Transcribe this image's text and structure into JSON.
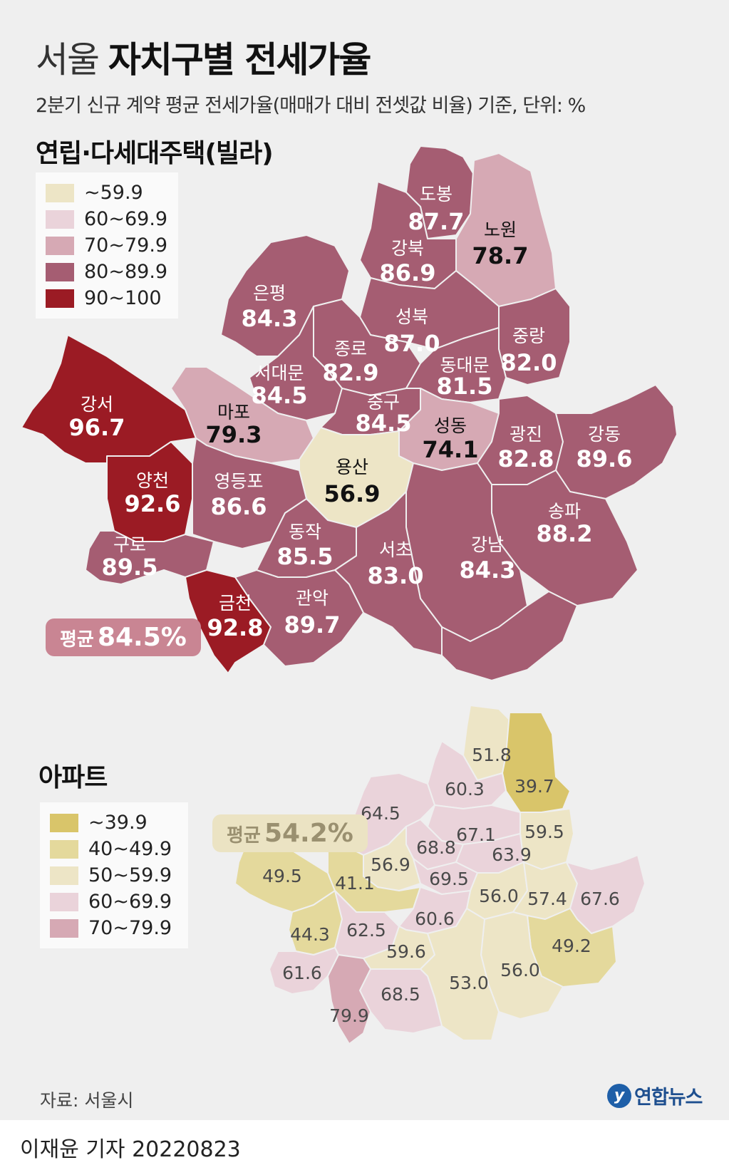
{
  "title": {
    "light": "서울",
    "bold": "자치구별 전세가율"
  },
  "subtitle": "2분기 신규 계약 평균 전세가율(매매가 대비 전셋값 비율) 기준, 단위: %",
  "villa": {
    "section_title": "연립·다세대주택(빌라)",
    "legend": [
      {
        "label": "~59.9",
        "color": "#ede5c6"
      },
      {
        "label": "60~69.9",
        "color": "#ead3da"
      },
      {
        "label": "70~79.9",
        "color": "#d6a9b4"
      },
      {
        "label": "80~89.9",
        "color": "#a55d72"
      },
      {
        "label": "90~100",
        "color": "#9b1b24"
      }
    ],
    "average": {
      "label": "평균",
      "value": "84.5%"
    },
    "districts": [
      {
        "name": "도봉",
        "value": "87.7",
        "color": "#a55d72"
      },
      {
        "name": "노원",
        "value": "78.7",
        "color": "#d6a9b4"
      },
      {
        "name": "강북",
        "value": "86.9",
        "color": "#a55d72"
      },
      {
        "name": "은평",
        "value": "84.3",
        "color": "#a55d72"
      },
      {
        "name": "성북",
        "value": "87.0",
        "color": "#a55d72"
      },
      {
        "name": "중랑",
        "value": "82.0",
        "color": "#a55d72"
      },
      {
        "name": "종로",
        "value": "82.9",
        "color": "#a55d72"
      },
      {
        "name": "서대문",
        "value": "84.5",
        "color": "#a55d72"
      },
      {
        "name": "동대문",
        "value": "81.5",
        "color": "#a55d72"
      },
      {
        "name": "강서",
        "value": "96.7",
        "color": "#9b1b24"
      },
      {
        "name": "마포",
        "value": "79.3",
        "color": "#d6a9b4"
      },
      {
        "name": "중구",
        "value": "84.5",
        "color": "#a55d72"
      },
      {
        "name": "성동",
        "value": "74.1",
        "color": "#d6a9b4"
      },
      {
        "name": "광진",
        "value": "82.8",
        "color": "#a55d72"
      },
      {
        "name": "강동",
        "value": "89.6",
        "color": "#a55d72"
      },
      {
        "name": "용산",
        "value": "56.9",
        "color": "#ede5c6"
      },
      {
        "name": "양천",
        "value": "92.6",
        "color": "#9b1b24"
      },
      {
        "name": "영등포",
        "value": "86.6",
        "color": "#a55d72"
      },
      {
        "name": "송파",
        "value": "88.2",
        "color": "#a55d72"
      },
      {
        "name": "동작",
        "value": "85.5",
        "color": "#a55d72"
      },
      {
        "name": "강남",
        "value": "84.3",
        "color": "#a55d72"
      },
      {
        "name": "구로",
        "value": "89.5",
        "color": "#a55d72"
      },
      {
        "name": "서초",
        "value": "83.0",
        "color": "#a55d72"
      },
      {
        "name": "금천",
        "value": "92.8",
        "color": "#9b1b24"
      },
      {
        "name": "관악",
        "value": "89.7",
        "color": "#a55d72"
      }
    ]
  },
  "apartment": {
    "section_title": "아파트",
    "legend": [
      {
        "label": "~39.9",
        "color": "#d9c56a"
      },
      {
        "label": "40~49.9",
        "color": "#e4d99c"
      },
      {
        "label": "50~59.9",
        "color": "#ede5c6"
      },
      {
        "label": "60~69.9",
        "color": "#ead3da"
      },
      {
        "label": "70~79.9",
        "color": "#d6a9b4"
      }
    ],
    "average": {
      "label": "평균",
      "value": "54.2%"
    },
    "districts": [
      {
        "name": "도봉",
        "value": "51.8",
        "color": "#ede5c6"
      },
      {
        "name": "노원",
        "value": "39.7",
        "color": "#d9c56a"
      },
      {
        "name": "강북",
        "value": "60.3",
        "color": "#ead3da"
      },
      {
        "name": "은평",
        "value": "64.5",
        "color": "#ead3da"
      },
      {
        "name": "성북",
        "value": "67.1",
        "color": "#ead3da"
      },
      {
        "name": "중랑",
        "value": "59.5",
        "color": "#ede5c6"
      },
      {
        "name": "종로",
        "value": "68.8",
        "color": "#ead3da"
      },
      {
        "name": "동대문",
        "value": "63.9",
        "color": "#ead3da"
      },
      {
        "name": "서대문",
        "value": "56.9",
        "color": "#ede5c6"
      },
      {
        "name": "강서",
        "value": "49.5",
        "color": "#e4d99c"
      },
      {
        "name": "마포",
        "value": "41.1",
        "color": "#e4d99c"
      },
      {
        "name": "중구",
        "value": "69.5",
        "color": "#ead3da"
      },
      {
        "name": "성동",
        "value": "56.0",
        "color": "#ede5c6"
      },
      {
        "name": "광진",
        "value": "57.4",
        "color": "#ede5c6"
      },
      {
        "name": "강동",
        "value": "67.6",
        "color": "#ead3da"
      },
      {
        "name": "양천",
        "value": "44.3",
        "color": "#e4d99c"
      },
      {
        "name": "영등포",
        "value": "62.5",
        "color": "#ead3da"
      },
      {
        "name": "용산",
        "value": "60.6",
        "color": "#ead3da"
      },
      {
        "name": "송파",
        "value": "49.2",
        "color": "#e4d99c"
      },
      {
        "name": "동작",
        "value": "59.6",
        "color": "#ede5c6"
      },
      {
        "name": "구로",
        "value": "61.6",
        "color": "#ead3da"
      },
      {
        "name": "강남",
        "value": "56.0",
        "color": "#ede5c6"
      },
      {
        "name": "서초",
        "value": "53.0",
        "color": "#ede5c6"
      },
      {
        "name": "관악",
        "value": "68.5",
        "color": "#ead3da"
      },
      {
        "name": "금천",
        "value": "79.9",
        "color": "#d6a9b4"
      }
    ]
  },
  "source": "자료: 서울시",
  "logo_text": "연합뉴스",
  "byline": "이재윤 기자  20220823"
}
